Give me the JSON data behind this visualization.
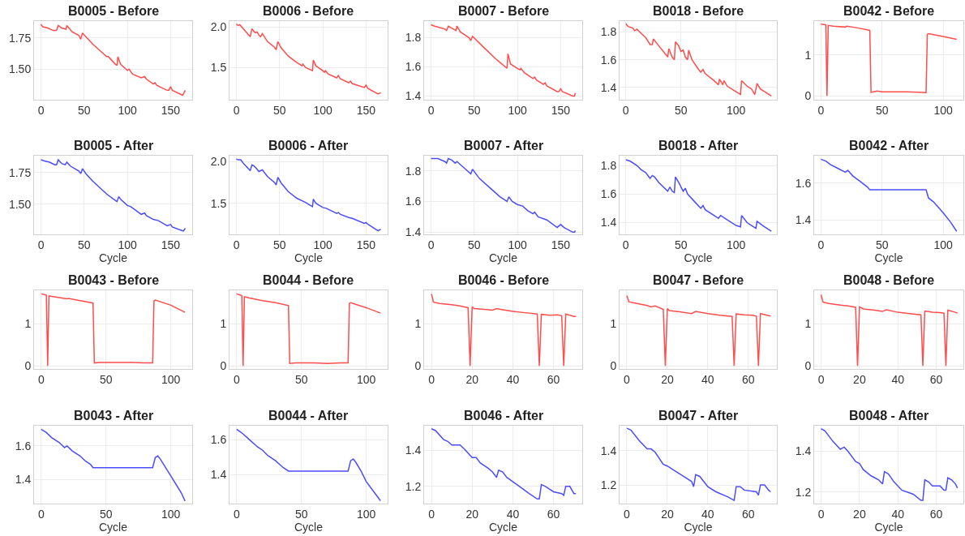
{
  "chart_data": [
    {
      "type": "line",
      "title": "B0005 - Before",
      "color": "#ff4c4c",
      "grid": true,
      "xlim": [
        -8,
        175
      ],
      "ylim": [
        1.255,
        1.887
      ],
      "xticks": [
        0,
        50,
        100,
        150
      ],
      "yticks": [
        {
          "value": 1.5,
          "label": "1.50"
        },
        {
          "value": 1.75,
          "label": "1.75"
        }
      ],
      "x": [
        0,
        2,
        8,
        14,
        18,
        20,
        24,
        29,
        30,
        36,
        44,
        46,
        48,
        60,
        76,
        78,
        86,
        88,
        89,
        92,
        100,
        102,
        106,
        116,
        120,
        122,
        130,
        132,
        134,
        146,
        148,
        150,
        152,
        164,
        167
      ],
      "values": [
        1.86,
        1.84,
        1.83,
        1.81,
        1.81,
        1.85,
        1.83,
        1.82,
        1.85,
        1.8,
        1.77,
        1.74,
        1.79,
        1.7,
        1.6,
        1.6,
        1.54,
        1.53,
        1.6,
        1.54,
        1.49,
        1.5,
        1.46,
        1.43,
        1.44,
        1.42,
        1.38,
        1.39,
        1.37,
        1.33,
        1.33,
        1.36,
        1.33,
        1.29,
        1.33
      ]
    },
    {
      "type": "line",
      "title": "B0006 - Before",
      "color": "#ff4c4c",
      "grid": true,
      "xlim": [
        -8,
        175
      ],
      "ylim": [
        1.1,
        2.077
      ],
      "xticks": [
        0,
        50,
        100,
        150
      ],
      "yticks": [
        {
          "value": 1.5,
          "label": "1.5"
        },
        {
          "value": 2.0,
          "label": "2.0"
        }
      ],
      "x": [
        0,
        2,
        4,
        8,
        16,
        18,
        20,
        22,
        24,
        26,
        28,
        30,
        36,
        44,
        46,
        48,
        52,
        60,
        70,
        76,
        77,
        80,
        88,
        89,
        92,
        100,
        102,
        103,
        106,
        116,
        118,
        120,
        130,
        132,
        134,
        148,
        150,
        152,
        164,
        166,
        167
      ],
      "values": [
        2.04,
        2.02,
        2.03,
        1.98,
        1.88,
        1.98,
        1.95,
        1.93,
        1.94,
        1.9,
        1.88,
        1.92,
        1.82,
        1.75,
        1.72,
        1.82,
        1.74,
        1.64,
        1.56,
        1.52,
        1.54,
        1.5,
        1.46,
        1.59,
        1.52,
        1.46,
        1.44,
        1.46,
        1.42,
        1.37,
        1.4,
        1.36,
        1.31,
        1.33,
        1.3,
        1.25,
        1.28,
        1.24,
        1.17,
        1.18,
        1.19
      ]
    },
    {
      "type": "line",
      "title": "B0007 - Before",
      "color": "#ff4c4c",
      "grid": true,
      "xlim": [
        -8,
        175
      ],
      "ylim": [
        1.375,
        1.916
      ],
      "xticks": [
        0,
        50,
        100,
        150
      ],
      "yticks": [
        1.4,
        1.6,
        1.8
      ],
      "x": [
        0,
        4,
        10,
        16,
        18,
        20,
        26,
        29,
        30,
        34,
        44,
        46,
        48,
        60,
        74,
        80,
        86,
        88,
        89,
        92,
        100,
        103,
        104,
        108,
        118,
        120,
        122,
        130,
        132,
        134,
        146,
        148,
        150,
        152,
        164,
        166,
        167
      ],
      "values": [
        1.89,
        1.88,
        1.87,
        1.86,
        1.85,
        1.88,
        1.86,
        1.85,
        1.88,
        1.84,
        1.8,
        1.78,
        1.81,
        1.74,
        1.66,
        1.63,
        1.6,
        1.59,
        1.69,
        1.62,
        1.59,
        1.58,
        1.59,
        1.56,
        1.52,
        1.53,
        1.51,
        1.48,
        1.49,
        1.47,
        1.43,
        1.43,
        1.45,
        1.43,
        1.4,
        1.4,
        1.42
      ]
    },
    {
      "type": "line",
      "title": "B0018 - Before",
      "color": "#ff4c4c",
      "grid": true,
      "xlim": [
        -5.7,
        137
      ],
      "ylim": [
        1.313,
        1.88
      ],
      "xticks": [
        0,
        50,
        100
      ],
      "yticks": [
        1.4,
        1.6,
        1.8
      ],
      "x": [
        0,
        2,
        6,
        8,
        10,
        14,
        18,
        22,
        24,
        25,
        30,
        38,
        39,
        42,
        44,
        45,
        48,
        50,
        52,
        54,
        56,
        57,
        60,
        66,
        68,
        70,
        72,
        80,
        84,
        85,
        88,
        89,
        92,
        100,
        104,
        105,
        110,
        114,
        117,
        119,
        122,
        126,
        130,
        132
      ],
      "values": [
        1.86,
        1.84,
        1.83,
        1.81,
        1.82,
        1.79,
        1.76,
        1.71,
        1.71,
        1.75,
        1.7,
        1.62,
        1.68,
        1.62,
        1.6,
        1.73,
        1.7,
        1.66,
        1.67,
        1.62,
        1.6,
        1.67,
        1.6,
        1.53,
        1.51,
        1.53,
        1.5,
        1.45,
        1.42,
        1.46,
        1.42,
        1.45,
        1.41,
        1.37,
        1.35,
        1.45,
        1.41,
        1.39,
        1.35,
        1.43,
        1.39,
        1.37,
        1.35,
        1.34
      ]
    },
    {
      "type": "line",
      "title": "B0042 - Before",
      "color": "#ff4c4c",
      "grid": true,
      "xlim": [
        -5.5,
        116.5
      ],
      "ylim": [
        -0.09,
        1.83
      ],
      "xticks": [
        0,
        50,
        100
      ],
      "yticks": [
        0,
        1
      ],
      "x": [
        0,
        3,
        4,
        5,
        6,
        10,
        20,
        21,
        30,
        40,
        41,
        43,
        46,
        50,
        60,
        70,
        80,
        86,
        87,
        88,
        100,
        111
      ],
      "values": [
        1.75,
        1.74,
        1.73,
        0,
        1.72,
        1.7,
        1.68,
        1.7,
        1.66,
        1.6,
        0.09,
        0.1,
        0.12,
        0.1,
        0.1,
        0.1,
        0.09,
        0.08,
        1.5,
        1.52,
        1.45,
        1.38
      ]
    },
    {
      "type": "line",
      "title": "B0005 - After",
      "xlabel": "Cycle",
      "color": "#4c4cff",
      "grid": true,
      "xlim": [
        -8,
        175
      ],
      "ylim": [
        1.26,
        1.88
      ],
      "xticks": [
        0,
        50,
        100,
        150
      ],
      "yticks": [
        {
          "value": 1.5,
          "label": "1.50"
        },
        {
          "value": 1.75,
          "label": "1.75"
        }
      ],
      "x": [
        0,
        4,
        10,
        16,
        18,
        20,
        24,
        28,
        30,
        34,
        44,
        46,
        48,
        52,
        60,
        76,
        86,
        88,
        90,
        92,
        100,
        104,
        110,
        116,
        120,
        122,
        130,
        136,
        146,
        150,
        152,
        164,
        165,
        167
      ],
      "values": [
        1.85,
        1.84,
        1.83,
        1.81,
        1.81,
        1.85,
        1.82,
        1.81,
        1.83,
        1.8,
        1.76,
        1.74,
        1.78,
        1.74,
        1.68,
        1.58,
        1.53,
        1.52,
        1.56,
        1.54,
        1.49,
        1.48,
        1.45,
        1.42,
        1.43,
        1.41,
        1.38,
        1.37,
        1.33,
        1.34,
        1.32,
        1.29,
        1.29,
        1.31
      ]
    },
    {
      "type": "line",
      "title": "B0006 - After",
      "xlabel": "Cycle",
      "color": "#4c4cff",
      "grid": true,
      "xlim": [
        -8,
        175
      ],
      "ylim": [
        1.125,
        2.067
      ],
      "xticks": [
        0,
        50,
        100,
        150
      ],
      "yticks": [
        {
          "value": 1.5,
          "label": "1.5"
        },
        {
          "value": 2.0,
          "label": "2.0"
        }
      ],
      "x": [
        0,
        2,
        5,
        8,
        16,
        18,
        20,
        22,
        26,
        30,
        36,
        44,
        46,
        48,
        52,
        60,
        70,
        78,
        80,
        88,
        89,
        92,
        100,
        104,
        116,
        118,
        120,
        130,
        134,
        148,
        150,
        152,
        164,
        167
      ],
      "values": [
        2.03,
        2.02,
        2.02,
        1.98,
        1.89,
        1.96,
        1.95,
        1.93,
        1.88,
        1.9,
        1.82,
        1.75,
        1.72,
        1.81,
        1.74,
        1.64,
        1.56,
        1.52,
        1.51,
        1.46,
        1.55,
        1.5,
        1.45,
        1.44,
        1.38,
        1.39,
        1.37,
        1.33,
        1.32,
        1.26,
        1.27,
        1.25,
        1.17,
        1.19
      ]
    },
    {
      "type": "line",
      "title": "B0007 - After",
      "xlabel": "Cycle",
      "color": "#4c4cff",
      "grid": true,
      "xlim": [
        -8,
        175
      ],
      "ylim": [
        1.384,
        1.897
      ],
      "xticks": [
        0,
        50,
        100,
        150
      ],
      "yticks": [
        1.4,
        1.6,
        1.8
      ],
      "x": [
        0,
        8,
        16,
        18,
        20,
        24,
        28,
        30,
        34,
        44,
        46,
        48,
        56,
        70,
        80,
        88,
        90,
        94,
        100,
        106,
        112,
        118,
        120,
        124,
        134,
        146,
        150,
        154,
        164,
        166,
        167
      ],
      "values": [
        1.88,
        1.88,
        1.86,
        1.85,
        1.88,
        1.87,
        1.85,
        1.86,
        1.84,
        1.79,
        1.78,
        1.81,
        1.75,
        1.68,
        1.63,
        1.6,
        1.63,
        1.6,
        1.58,
        1.57,
        1.54,
        1.52,
        1.53,
        1.5,
        1.48,
        1.43,
        1.45,
        1.43,
        1.4,
        1.4,
        1.41
      ]
    },
    {
      "type": "line",
      "title": "B0018 - After",
      "xlabel": "Cycle",
      "color": "#4c4cff",
      "grid": true,
      "xlim": [
        -5.7,
        137
      ],
      "ylim": [
        1.316,
        1.867
      ],
      "xticks": [
        0,
        50,
        100
      ],
      "yticks": [
        1.4,
        1.6,
        1.8
      ],
      "x": [
        0,
        4,
        10,
        14,
        18,
        22,
        24,
        26,
        30,
        38,
        40,
        42,
        44,
        45,
        48,
        52,
        54,
        56,
        62,
        68,
        70,
        72,
        80,
        84,
        86,
        90,
        100,
        104,
        105,
        110,
        114,
        118,
        119,
        124,
        130,
        132
      ],
      "values": [
        1.84,
        1.83,
        1.8,
        1.77,
        1.75,
        1.71,
        1.73,
        1.72,
        1.68,
        1.62,
        1.65,
        1.62,
        1.61,
        1.72,
        1.68,
        1.62,
        1.64,
        1.6,
        1.55,
        1.5,
        1.52,
        1.49,
        1.45,
        1.43,
        1.45,
        1.43,
        1.38,
        1.37,
        1.45,
        1.4,
        1.38,
        1.36,
        1.41,
        1.38,
        1.35,
        1.34
      ]
    },
    {
      "type": "line",
      "title": "B0042 - After",
      "xlabel": "Cycle",
      "color": "#4c4cff",
      "grid": true,
      "xlim": [
        -5.5,
        116.5
      ],
      "ylim": [
        1.322,
        1.748
      ],
      "xticks": [
        0,
        50,
        100
      ],
      "yticks": [
        1.4,
        1.6
      ],
      "x": [
        0,
        4,
        8,
        14,
        20,
        22,
        26,
        32,
        38,
        40,
        86,
        88,
        92,
        100,
        106,
        111
      ],
      "values": [
        1.73,
        1.72,
        1.7,
        1.68,
        1.66,
        1.67,
        1.64,
        1.61,
        1.58,
        1.565,
        1.565,
        1.52,
        1.5,
        1.44,
        1.39,
        1.34
      ]
    },
    {
      "type": "line",
      "title": "B0043 - Before",
      "color": "#ff4c4c",
      "grid": true,
      "xlim": [
        -5.5,
        116.5
      ],
      "ylim": [
        -0.07,
        1.81
      ],
      "xticks": [
        0,
        50,
        100
      ],
      "yticks": [
        0,
        1
      ],
      "x": [
        0,
        3,
        4,
        5,
        6,
        10,
        20,
        21,
        30,
        40,
        41,
        45,
        50,
        60,
        70,
        80,
        86,
        87,
        88,
        100,
        111
      ],
      "values": [
        1.72,
        1.7,
        1.69,
        0,
        1.67,
        1.65,
        1.6,
        1.61,
        1.56,
        1.5,
        0.07,
        0.08,
        0.08,
        0.08,
        0.08,
        0.07,
        0.07,
        1.55,
        1.57,
        1.45,
        1.28
      ]
    },
    {
      "type": "line",
      "title": "B0044 - Before",
      "color": "#ff4c4c",
      "grid": true,
      "xlim": [
        -5.5,
        116.5
      ],
      "ylim": [
        -0.07,
        1.81
      ],
      "xticks": [
        0,
        50,
        100
      ],
      "yticks": [
        0,
        1
      ],
      "x": [
        0,
        3,
        4,
        5,
        6,
        10,
        20,
        30,
        40,
        41,
        45,
        50,
        60,
        70,
        80,
        86,
        87,
        88,
        100,
        111
      ],
      "values": [
        1.72,
        1.69,
        1.68,
        0,
        1.65,
        1.62,
        1.56,
        1.51,
        1.44,
        0.06,
        0.07,
        0.07,
        0.07,
        0.06,
        0.07,
        0.07,
        1.49,
        1.51,
        1.39,
        1.26
      ]
    },
    {
      "type": "line",
      "title": "B0046 - Before",
      "color": "#ff4c4c",
      "grid": true,
      "xlim": [
        -3.6,
        74.1
      ],
      "ylim": [
        -0.07,
        1.81
      ],
      "xticks": [
        0,
        20,
        40,
        60
      ],
      "yticks": [
        0,
        1
      ],
      "x": [
        0,
        1,
        4,
        10,
        14,
        17,
        18,
        19,
        20,
        21,
        26,
        30,
        32,
        34,
        40,
        46,
        52,
        53,
        54,
        58,
        62,
        64,
        65,
        66,
        70,
        71
      ],
      "values": [
        1.72,
        1.52,
        1.49,
        1.46,
        1.43,
        1.4,
        1.39,
        0,
        1.41,
        1.37,
        1.35,
        1.33,
        1.37,
        1.35,
        1.3,
        1.27,
        1.24,
        0,
        1.23,
        1.21,
        1.22,
        1.2,
        0,
        1.24,
        1.18,
        1.18
      ]
    },
    {
      "type": "line",
      "title": "B0047 - Before",
      "color": "#ff4c4c",
      "grid": true,
      "xlim": [
        -3.6,
        74.1
      ],
      "ylim": [
        -0.07,
        1.81
      ],
      "xticks": [
        0,
        20,
        40,
        60
      ],
      "yticks": [
        0,
        1
      ],
      "x": [
        0,
        1,
        4,
        10,
        12,
        14,
        18,
        19,
        20,
        21,
        26,
        32,
        34,
        40,
        46,
        52,
        53,
        54,
        58,
        62,
        64,
        65,
        66,
        70,
        71
      ],
      "values": [
        1.68,
        1.53,
        1.5,
        1.44,
        1.41,
        1.43,
        1.35,
        0,
        1.37,
        1.32,
        1.29,
        1.25,
        1.3,
        1.25,
        1.21,
        1.18,
        0,
        1.24,
        1.22,
        1.21,
        1.19,
        0,
        1.25,
        1.2,
        1.19
      ]
    },
    {
      "type": "line",
      "title": "B0048 - Before",
      "color": "#ff4c4c",
      "grid": true,
      "xlim": [
        -3.6,
        74.1
      ],
      "ylim": [
        -0.07,
        1.81
      ],
      "xticks": [
        0,
        20,
        40,
        60
      ],
      "yticks": [
        0,
        1
      ],
      "x": [
        0,
        1,
        4,
        10,
        14,
        18,
        19,
        20,
        22,
        28,
        32,
        34,
        40,
        46,
        52,
        53,
        54,
        58,
        62,
        64,
        65,
        66,
        70,
        71
      ],
      "values": [
        1.7,
        1.52,
        1.49,
        1.45,
        1.43,
        1.4,
        0,
        1.41,
        1.36,
        1.33,
        1.3,
        1.34,
        1.28,
        1.25,
        1.22,
        0,
        1.31,
        1.28,
        1.27,
        1.26,
        0,
        1.33,
        1.28,
        1.26
      ]
    },
    {
      "type": "line",
      "title": "B0043 - After",
      "xlabel": "Cycle",
      "color": "#4c4cff",
      "grid": true,
      "xlim": [
        -5.5,
        116.5
      ],
      "ylim": [
        1.253,
        1.72
      ],
      "xticks": [
        0,
        50,
        100
      ],
      "yticks": [
        1.4,
        1.6
      ],
      "x": [
        0,
        4,
        8,
        14,
        18,
        20,
        24,
        30,
        34,
        38,
        40,
        86,
        88,
        90,
        92,
        96,
        100,
        104,
        108,
        111
      ],
      "values": [
        1.7,
        1.68,
        1.65,
        1.62,
        1.59,
        1.6,
        1.57,
        1.54,
        1.51,
        1.49,
        1.47,
        1.47,
        1.53,
        1.54,
        1.52,
        1.47,
        1.42,
        1.37,
        1.32,
        1.27
      ]
    },
    {
      "type": "line",
      "title": "B0044 - After",
      "xlabel": "Cycle",
      "color": "#4c4cff",
      "grid": true,
      "xlim": [
        -5.5,
        116.5
      ],
      "ylim": [
        1.232,
        1.68
      ],
      "xticks": [
        0,
        50,
        100
      ],
      "yticks": [
        1.4,
        1.6
      ],
      "x": [
        0,
        4,
        10,
        16,
        20,
        24,
        30,
        36,
        40,
        86,
        88,
        90,
        92,
        96,
        100,
        104,
        108,
        111
      ],
      "values": [
        1.66,
        1.64,
        1.6,
        1.56,
        1.54,
        1.51,
        1.48,
        1.44,
        1.42,
        1.42,
        1.48,
        1.49,
        1.47,
        1.42,
        1.36,
        1.32,
        1.28,
        1.25
      ]
    },
    {
      "type": "line",
      "title": "B0046 - After",
      "xlabel": "Cycle",
      "color": "#4c4cff",
      "grid": true,
      "xlim": [
        -3.6,
        74.1
      ],
      "ylim": [
        1.103,
        1.536
      ],
      "xticks": [
        0,
        20,
        40,
        60
      ],
      "yticks": [
        1.2,
        1.4
      ],
      "x": [
        0,
        2,
        6,
        8,
        10,
        12,
        14,
        16,
        20,
        22,
        24,
        28,
        30,
        32,
        33,
        35,
        37,
        42,
        48,
        52,
        53,
        54,
        56,
        60,
        64,
        65,
        66,
        68,
        70,
        71
      ],
      "values": [
        1.52,
        1.51,
        1.46,
        1.45,
        1.43,
        1.43,
        1.43,
        1.41,
        1.36,
        1.36,
        1.33,
        1.3,
        1.28,
        1.25,
        1.29,
        1.28,
        1.25,
        1.21,
        1.16,
        1.13,
        1.13,
        1.21,
        1.2,
        1.17,
        1.16,
        1.15,
        1.2,
        1.2,
        1.16,
        1.16
      ]
    },
    {
      "type": "line",
      "title": "B0047 - After",
      "xlabel": "Cycle",
      "color": "#4c4cff",
      "grid": true,
      "xlim": [
        -3.6,
        74.1
      ],
      "ylim": [
        1.09,
        1.544
      ],
      "xticks": [
        0,
        20,
        40,
        60
      ],
      "yticks": [
        1.2,
        1.4
      ],
      "x": [
        0,
        2,
        6,
        10,
        12,
        14,
        18,
        20,
        24,
        28,
        32,
        33,
        34,
        36,
        40,
        44,
        50,
        53,
        54,
        56,
        58,
        64,
        65,
        66,
        68,
        70,
        71
      ],
      "values": [
        1.53,
        1.52,
        1.46,
        1.41,
        1.41,
        1.39,
        1.32,
        1.31,
        1.28,
        1.25,
        1.22,
        1.19,
        1.26,
        1.25,
        1.19,
        1.16,
        1.13,
        1.11,
        1.19,
        1.19,
        1.17,
        1.16,
        1.14,
        1.2,
        1.2,
        1.17,
        1.16
      ]
    },
    {
      "type": "line",
      "title": "B0048 - After",
      "xlabel": "Cycle",
      "color": "#4c4cff",
      "grid": true,
      "xlim": [
        -3.6,
        74.1
      ],
      "ylim": [
        1.143,
        1.524
      ],
      "xticks": [
        0,
        20,
        40,
        60
      ],
      "yticks": [
        1.2,
        1.4
      ],
      "x": [
        0,
        2,
        6,
        10,
        12,
        14,
        18,
        20,
        22,
        26,
        30,
        32,
        33,
        35,
        38,
        42,
        48,
        52,
        53,
        54,
        56,
        58,
        62,
        64,
        65,
        66,
        68,
        70,
        71
      ],
      "values": [
        1.51,
        1.5,
        1.45,
        1.41,
        1.42,
        1.4,
        1.35,
        1.34,
        1.31,
        1.28,
        1.26,
        1.24,
        1.3,
        1.29,
        1.25,
        1.21,
        1.19,
        1.16,
        1.16,
        1.26,
        1.25,
        1.23,
        1.23,
        1.21,
        1.21,
        1.27,
        1.26,
        1.24,
        1.22
      ]
    }
  ]
}
